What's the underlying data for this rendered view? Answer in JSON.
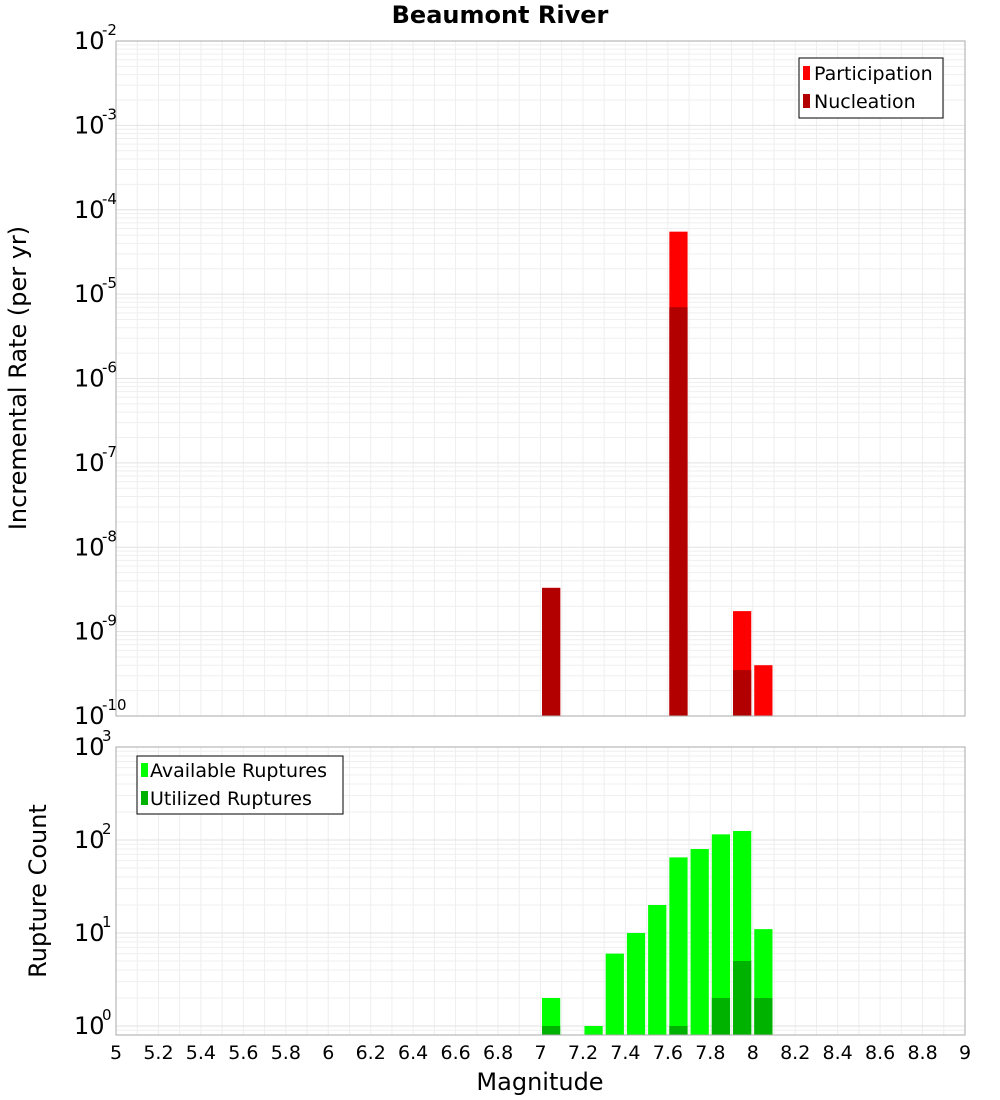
{
  "chart_data": [
    {
      "type": "bar",
      "title": "Beaumont River",
      "xlabel": "",
      "ylabel": "Incremental Rate (per yr)",
      "xlim": [
        5,
        9
      ],
      "ylim": [
        1e-10,
        0.01
      ],
      "yscale": "log",
      "bin_width": 0.1,
      "grid": true,
      "legend_position": "top-right",
      "yticks": [
        {
          "base": "10",
          "exp": "-2",
          "value": 0.01
        },
        {
          "base": "10",
          "exp": "-3",
          "value": 0.001
        },
        {
          "base": "10",
          "exp": "-4",
          "value": 0.0001
        },
        {
          "base": "10",
          "exp": "-5",
          "value": 1e-05
        },
        {
          "base": "10",
          "exp": "-6",
          "value": 1e-06
        },
        {
          "base": "10",
          "exp": "-7",
          "value": 1e-07
        },
        {
          "base": "10",
          "exp": "-8",
          "value": 1e-08
        },
        {
          "base": "10",
          "exp": "-9",
          "value": 1e-09
        },
        {
          "base": "10",
          "exp": "-10",
          "value": 1e-10
        }
      ],
      "series": [
        {
          "name": "Participation",
          "color": "#ff0000",
          "x": [
            7.05,
            7.65,
            7.95,
            8.05
          ],
          "values": [
            3.3e-09,
            5.5e-05,
            1.75e-09,
            4e-10
          ]
        },
        {
          "name": "Nucleation",
          "color": "#b20000",
          "x": [
            7.05,
            7.65,
            7.95
          ],
          "values": [
            3.3e-09,
            7e-06,
            3.5e-10
          ]
        }
      ]
    },
    {
      "type": "bar",
      "title": "",
      "xlabel": "Magnitude",
      "ylabel": "Rupture Count",
      "xlim": [
        5,
        9
      ],
      "ylim": [
        0.8,
        1000
      ],
      "yscale": "log",
      "bin_width": 0.1,
      "grid": true,
      "legend_position": "top-left",
      "xticks": [
        "5",
        "5.2",
        "5.4",
        "5.6",
        "5.8",
        "6",
        "6.2",
        "6.4",
        "6.6",
        "6.8",
        "7",
        "7.2",
        "7.4",
        "7.6",
        "7.8",
        "8",
        "8.2",
        "8.4",
        "8.6",
        "8.8",
        "9"
      ],
      "yticks": [
        {
          "base": "10",
          "exp": "3",
          "value": 1000
        },
        {
          "base": "10",
          "exp": "2",
          "value": 100
        },
        {
          "base": "10",
          "exp": "1",
          "value": 10
        },
        {
          "base": "10",
          "exp": "0",
          "value": 1
        }
      ],
      "series": [
        {
          "name": "Available Ruptures",
          "color": "#00ff00",
          "x": [
            7.05,
            7.25,
            7.35,
            7.45,
            7.55,
            7.65,
            7.75,
            7.85,
            7.95,
            8.05
          ],
          "values": [
            2,
            1,
            6,
            10,
            20,
            65,
            80,
            115,
            125,
            11
          ]
        },
        {
          "name": "Utilized Ruptures",
          "color": "#00b200",
          "x": [
            7.05,
            7.65,
            7.85,
            7.95,
            8.05
          ],
          "values": [
            1,
            1,
            2,
            5,
            2
          ]
        }
      ]
    }
  ]
}
